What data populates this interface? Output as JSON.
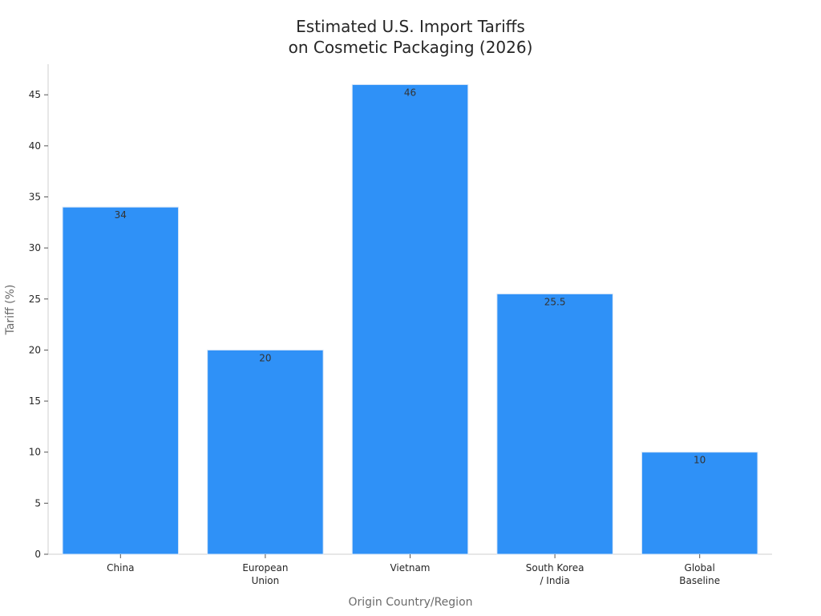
{
  "chart_data": {
    "type": "bar",
    "title": [
      "Estimated U.S. Import Tariffs",
      "on Cosmetic Packaging (2026)"
    ],
    "xlabel": "Origin Country/Region",
    "ylabel": "Tariff (%)",
    "categories": [
      [
        "China"
      ],
      [
        "European",
        "Union"
      ],
      [
        "Vietnam"
      ],
      [
        "South Korea",
        "/ India"
      ],
      [
        "Global",
        "Baseline"
      ]
    ],
    "values": [
      34,
      20,
      46,
      25.5,
      10
    ],
    "data_labels": [
      "34",
      "20",
      "46",
      "25.5",
      "10"
    ],
    "ylim": [
      0,
      48
    ],
    "yticks": [
      0,
      5,
      10,
      15,
      20,
      25,
      30,
      35,
      40,
      45
    ],
    "grid": false,
    "colors": {
      "bar": "#2f91f7",
      "bar_edge": "#d7e6f7",
      "axis": "#cfcfcf"
    }
  }
}
